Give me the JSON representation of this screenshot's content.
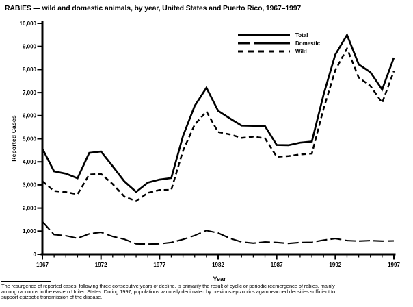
{
  "title": "RABIES — wild and domestic animals, by year, United States and Puerto Rico, 1967–1997",
  "footnote": {
    "lines": [
      "The resurgence of reported cases, following three consecutive years of decline, is primarily the result of cyclic or periodic reemergence of rabies, mainly",
      "among raccoons in the eastern United States. During 1997, populations variously decimated by previous epizootics again reached densities sufficient to",
      "support epizootic transmission of the disease."
    ]
  },
  "chart_data": {
    "type": "line",
    "title": "RABIES — wild and domestic animals, by year, United States and Puerto Rico, 1967–1997",
    "xlabel": "Year",
    "ylabel": "Reported Cases",
    "xlim": [
      1967,
      1997
    ],
    "ylim": [
      0,
      10000
    ],
    "grid": false,
    "legend_position": "top-right-inside",
    "line_color": "#000000",
    "x": [
      1967,
      1968,
      1969,
      1970,
      1971,
      1972,
      1973,
      1974,
      1975,
      1976,
      1977,
      1978,
      1979,
      1980,
      1981,
      1982,
      1983,
      1984,
      1985,
      1986,
      1987,
      1988,
      1989,
      1990,
      1991,
      1992,
      1993,
      1994,
      1995,
      1996,
      1997
    ],
    "x_major_ticks": [
      1967,
      1972,
      1977,
      1982,
      1987,
      1992,
      1997
    ],
    "x_tick_labels": [
      "1967",
      "1972",
      "1977",
      "1982",
      "1987",
      "1992",
      "1997"
    ],
    "y_ticks": [
      0,
      1000,
      2000,
      3000,
      4000,
      5000,
      6000,
      7000,
      8000,
      9000,
      10000
    ],
    "y_tick_labels": [
      "0",
      "1,000",
      "2,000",
      "3,000",
      "4,000",
      "5,000",
      "6,000",
      "7,000",
      "8,000",
      "9,000",
      "10,000"
    ],
    "series": [
      {
        "name": "Total",
        "style": "solid",
        "values": [
          4570,
          3590,
          3490,
          3290,
          4390,
          4450,
          3810,
          3150,
          2700,
          3100,
          3230,
          3300,
          5120,
          6420,
          7210,
          6210,
          5880,
          5570,
          5560,
          5550,
          4730,
          4720,
          4830,
          4880,
          6910,
          8640,
          9500,
          8220,
          7880,
          7130,
          8510
        ]
      },
      {
        "name": "Domestic",
        "style": "long-dash",
        "values": [
          1410,
          850,
          800,
          690,
          880,
          950,
          770,
          650,
          450,
          440,
          450,
          510,
          640,
          810,
          1030,
          920,
          690,
          530,
          480,
          530,
          510,
          470,
          510,
          520,
          610,
          680,
          590,
          570,
          590,
          570,
          580
        ]
      },
      {
        "name": "Wild",
        "style": "short-dash",
        "values": [
          3160,
          2740,
          2690,
          2600,
          3450,
          3480,
          3040,
          2500,
          2300,
          2660,
          2780,
          2790,
          4480,
          5610,
          6180,
          5290,
          5190,
          5040,
          5090,
          5020,
          4220,
          4250,
          4320,
          4360,
          6300,
          7960,
          8910,
          7650,
          7290,
          6560,
          7930
        ]
      }
    ]
  }
}
